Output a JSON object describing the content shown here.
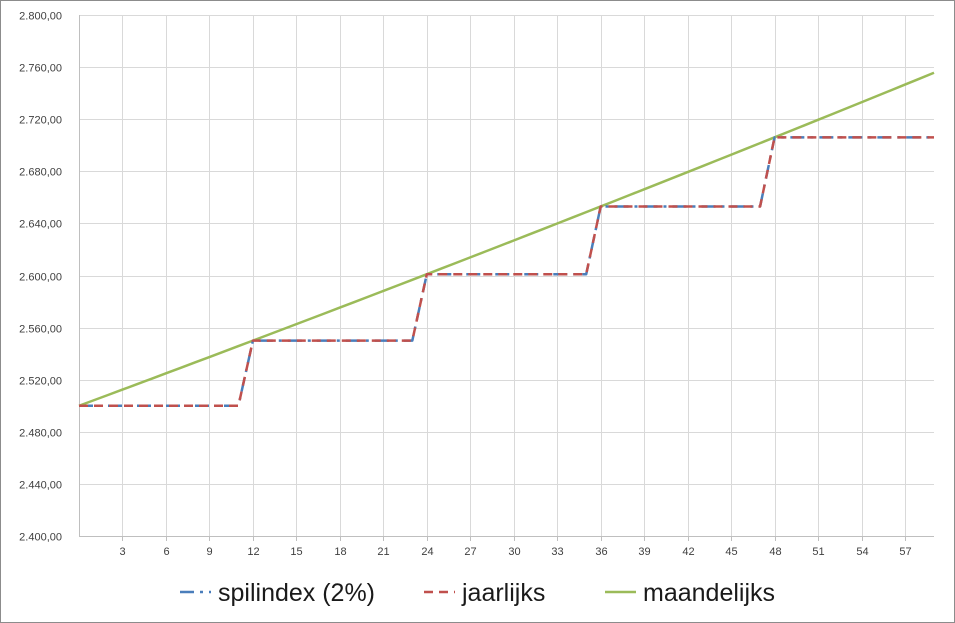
{
  "chart_data": {
    "type": "line",
    "title": "",
    "xlabel": "",
    "ylabel": "",
    "xlim": [
      0,
      59
    ],
    "ylim": [
      2400,
      2800
    ],
    "y_ticks": [
      2400,
      2440,
      2480,
      2520,
      2560,
      2600,
      2640,
      2680,
      2720,
      2760,
      2800
    ],
    "y_tick_labels": [
      "2.400,00",
      "2.440,00",
      "2.480,00",
      "2.520,00",
      "2.560,00",
      "2.600,00",
      "2.640,00",
      "2.680,00",
      "2.720,00",
      "2.760,00",
      "2.800,00"
    ],
    "x_ticks": [
      3,
      6,
      9,
      12,
      15,
      18,
      21,
      24,
      27,
      30,
      33,
      36,
      39,
      42,
      45,
      48,
      51,
      54,
      57
    ],
    "x_tick_labels": [
      "3",
      "6",
      "9",
      "12",
      "15",
      "18",
      "21",
      "24",
      "27",
      "30",
      "33",
      "36",
      "39",
      "42",
      "45",
      "48",
      "51",
      "54",
      "57"
    ],
    "grid": true,
    "legend_position": "bottom",
    "series": [
      {
        "name": "spilindex (2%)",
        "color": "#4a7ebb",
        "style": "dash-dot",
        "points": [
          [
            0,
            2500.0
          ],
          [
            11,
            2500.0
          ],
          [
            12,
            2550.0
          ],
          [
            23,
            2550.0
          ],
          [
            24,
            2601.0
          ],
          [
            35,
            2601.0
          ],
          [
            36,
            2653.02
          ],
          [
            47,
            2653.02
          ],
          [
            48,
            2706.08
          ],
          [
            59,
            2706.08
          ]
        ]
      },
      {
        "name": "jaarlijks",
        "color": "#c0504d",
        "style": "dashed",
        "points": [
          [
            0,
            2500.0
          ],
          [
            11,
            2500.0
          ],
          [
            12,
            2550.0
          ],
          [
            23,
            2550.0
          ],
          [
            24,
            2601.0
          ],
          [
            35,
            2601.0
          ],
          [
            36,
            2653.02
          ],
          [
            47,
            2653.02
          ],
          [
            48,
            2706.08
          ],
          [
            59,
            2706.08
          ]
        ]
      },
      {
        "name": "maandelijks",
        "color": "#9bbb59",
        "style": "solid",
        "monthly_growth_rate": 0.0016516,
        "start_value": 2500.0,
        "x_range": [
          0,
          59
        ],
        "points": [
          [
            0,
            2500.0
          ],
          [
            12,
            2550.0
          ],
          [
            24,
            2601.0
          ],
          [
            36,
            2653.02
          ],
          [
            48,
            2706.08
          ],
          [
            59,
            2755.71
          ]
        ]
      }
    ]
  }
}
